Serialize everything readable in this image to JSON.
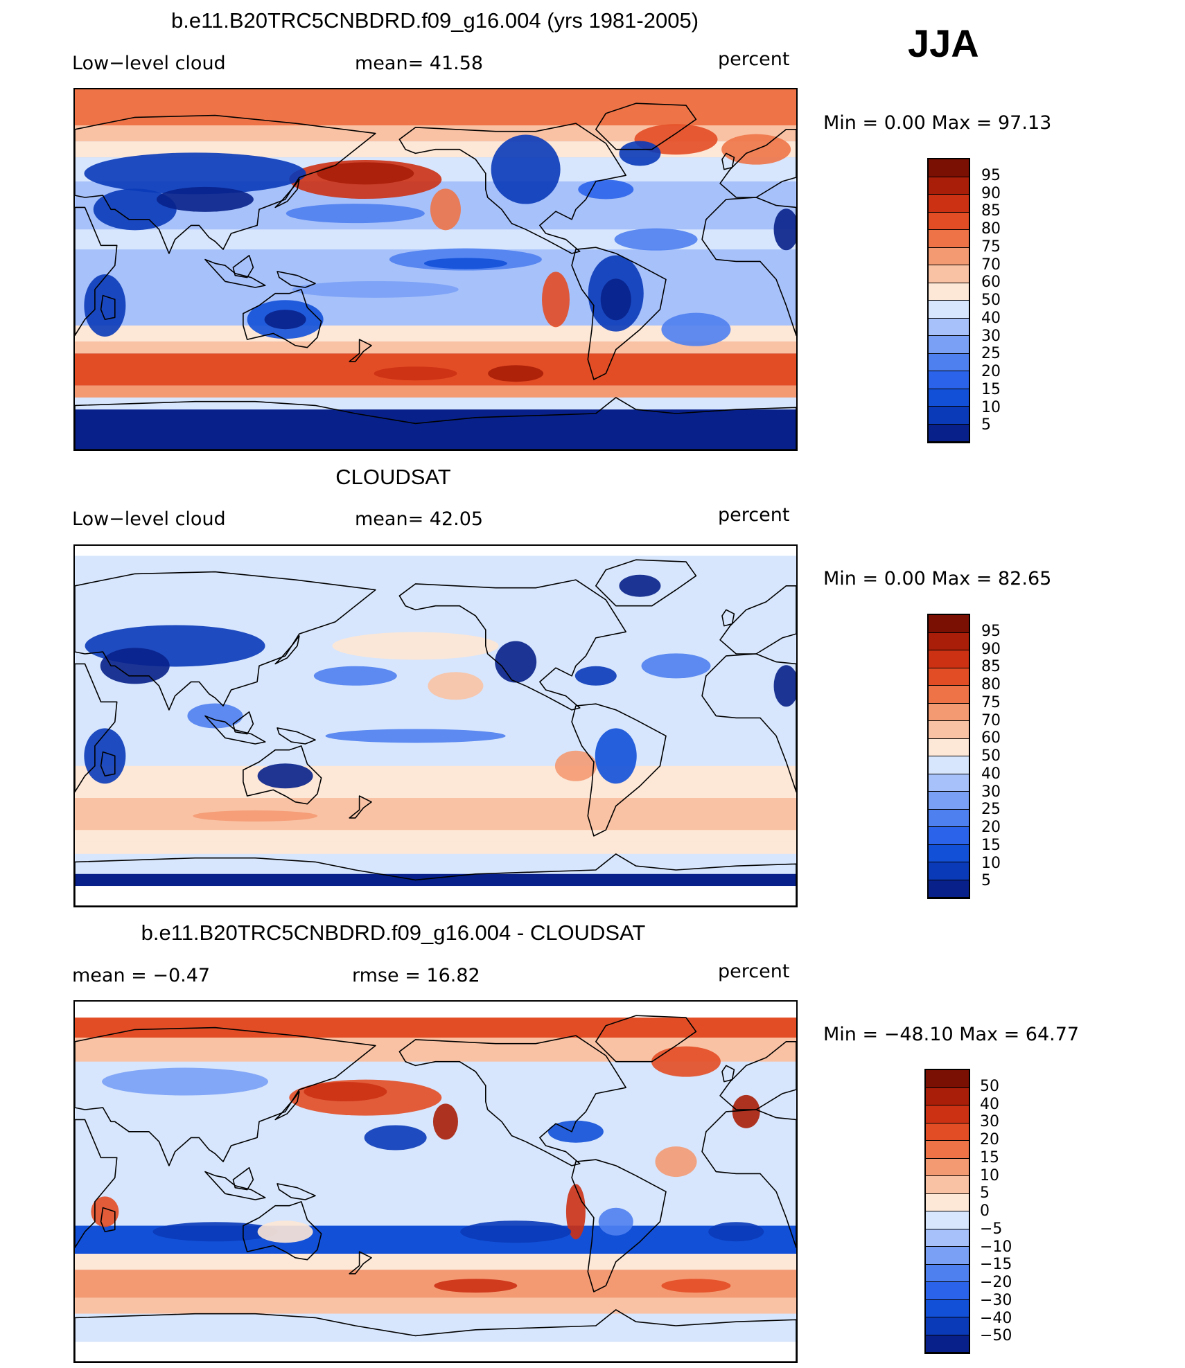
{
  "season": "JJA",
  "colors": {
    "scale_abs": [
      "#08218a",
      "#0a3ab8",
      "#1250d8",
      "#2b63ea",
      "#4f80f0",
      "#7aa0f6",
      "#a7c1fa",
      "#d7e6fc",
      "#fde7d6",
      "#f9c2a4",
      "#f49a73",
      "#ee7448",
      "#e34d25",
      "#cc3114",
      "#a81e08",
      "#7a0f03"
    ],
    "scale_diff": [
      "#08218a",
      "#0a3ab8",
      "#1250d8",
      "#2b63ea",
      "#4f80f0",
      "#7aa0f6",
      "#a7c1fa",
      "#d7e6fc",
      "#fde7d6",
      "#f9c2a4",
      "#f49a73",
      "#ee7448",
      "#e34d25",
      "#cc3114",
      "#a81e08",
      "#7a0f03"
    ],
    "coastline": "#000000"
  },
  "panels": [
    {
      "title": "b.e11.B20TRC5CNBDRD.f09_g16.004 (yrs 1981-2005)",
      "left_label": "Low−level cloud",
      "center_label": "mean=   41.58",
      "right_label": "percent",
      "minmax": "Min =    0.00 Max =   97.13",
      "legend_labels": [
        "95",
        "90",
        "85",
        "80",
        "75",
        "70",
        "60",
        "50",
        "40",
        "30",
        "25",
        "20",
        "15",
        "10",
        "5"
      ],
      "field": "model"
    },
    {
      "title": "CLOUDSAT",
      "left_label": "Low−level cloud",
      "center_label": "mean=   42.05",
      "right_label": "percent",
      "minmax": "Min =    0.00 Max =   82.65",
      "legend_labels": [
        "95",
        "90",
        "85",
        "80",
        "75",
        "70",
        "60",
        "50",
        "40",
        "30",
        "25",
        "20",
        "15",
        "10",
        "5"
      ],
      "field": "obs"
    },
    {
      "title": "b.e11.B20TRC5CNBDRD.f09_g16.004 - CLOUDSAT",
      "left_label": "mean =   −0.47",
      "center_label": "rmse =   16.82",
      "right_label": "percent",
      "minmax": "Min = −48.10 Max =   64.77",
      "legend_labels": [
        "50",
        "40",
        "30",
        "20",
        "15",
        "10",
        "5",
        "0",
        "−5",
        "−10",
        "−15",
        "−20",
        "−30",
        "−40",
        "−50"
      ],
      "field": "diff"
    }
  ]
}
